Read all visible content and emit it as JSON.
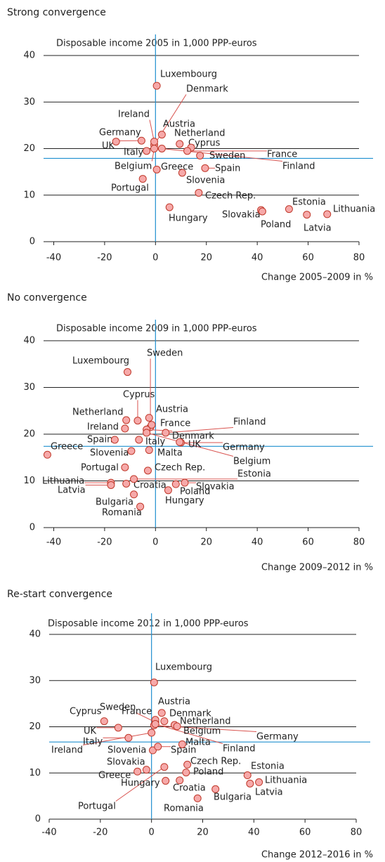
{
  "chart_data": [
    {
      "type": "scatter",
      "title": "Strong convergence",
      "ylabel": "Disposable income 2005 in 1,000 PPP-euros",
      "xlabel": "Change 2005–2009 in %",
      "xlim": [
        -44,
        80
      ],
      "ylim": [
        0,
        40
      ],
      "xticks": [
        -40,
        -20,
        0,
        20,
        40,
        60,
        80
      ],
      "yticks": [
        0,
        10,
        20,
        30,
        40
      ],
      "grid": true,
      "hline": 17.9,
      "vline": 0,
      "color": "#f6a9a9",
      "edgecolor": "#c0392b",
      "refcolor": "#1f8fcf",
      "labels": [
        "Luxembourg",
        "Denmark",
        "Ireland",
        "Austria",
        "Germany",
        "Netherland",
        "Cyprus",
        "UK",
        "Italy",
        "France",
        "Sweden",
        "Belgium",
        "Greece",
        "Spain",
        "Finland",
        "Slovenia",
        "Portugal",
        "Czech Rep.",
        "Slovakia",
        "Estonia",
        "Lithuania",
        "Hungary",
        "Poland",
        "Latvia"
      ],
      "x": [
        0.5,
        -0.5,
        -0.5,
        2.5,
        -15.5,
        9.5,
        14,
        -5.5,
        -3.5,
        12.5,
        17.5,
        -0.5,
        0.5,
        19.5,
        2.5,
        10.5,
        -5,
        17,
        41.5,
        52.5,
        67.5,
        5.5,
        42,
        59.5
      ],
      "values": [
        33.5,
        20.8,
        21.5,
        23,
        21.5,
        21,
        20.2,
        21.7,
        19.5,
        19.5,
        18.5,
        20,
        15.5,
        15.8,
        20,
        14.8,
        13.5,
        10.5,
        6.8,
        7,
        5.9,
        7.4,
        6.5,
        5.8
      ]
    },
    {
      "type": "scatter",
      "title": "No convergence",
      "ylabel": "Disposable income 2009 in 1,000 PPP-euros",
      "xlabel": "Change 2009–2012 in %",
      "xlim": [
        -44,
        80
      ],
      "ylim": [
        0,
        40
      ],
      "xticks": [
        -40,
        -20,
        0,
        20,
        40,
        60,
        80
      ],
      "yticks": [
        0,
        10,
        20,
        30,
        40
      ],
      "grid": true,
      "hline": 17.4,
      "vline": 0,
      "color": "#f6a9a9",
      "edgecolor": "#c0392b",
      "refcolor": "#1f8fcf",
      "labels": [
        "Sweden",
        "Luxembourg",
        "Cyprus",
        "Austria",
        "Netherland",
        "France",
        "Finland",
        "Ireland",
        "Denmark",
        "Spain",
        "Italy",
        "Germany",
        "UK",
        "Greece",
        "Belgium",
        "Slovenia",
        "Malta",
        "Portugal",
        "Czech Rep.",
        "Estonia",
        "Lithuania",
        "Croatia",
        "Slovakia",
        "Latvia",
        "Poland",
        "Hungary",
        "Bulgaria",
        "Romania"
      ],
      "x": [
        -2,
        -11,
        -7,
        -2.5,
        -11.5,
        -1.5,
        4,
        -12,
        -3.5,
        -16,
        -6.5,
        10,
        9.5,
        -42.5,
        -3.5,
        -9.5,
        -2.5,
        -12,
        -3,
        -8.5,
        -17.5,
        -11.5,
        11.5,
        -17.5,
        8,
        5,
        -8.5,
        -6
      ],
      "values": [
        21.5,
        33.3,
        22.9,
        23.5,
        23,
        22,
        20.3,
        21.2,
        21,
        18.8,
        18.8,
        18.2,
        18.3,
        15.6,
        20.3,
        16.4,
        16.6,
        12.9,
        12.2,
        10.4,
        9.6,
        9.4,
        9.6,
        9.1,
        9.3,
        8,
        7.1,
        4.5
      ]
    },
    {
      "type": "scatter",
      "title": "Re-start convergence",
      "ylabel": "Disposable income 2012 in 1,000 PPP-euros",
      "xlabel": "Change 2012–2016 in %",
      "xlim": [
        -40,
        80
      ],
      "ylim": [
        0,
        40
      ],
      "xticks": [
        -40,
        -20,
        0,
        20,
        40,
        60,
        80
      ],
      "yticks": [
        0,
        10,
        20,
        30,
        40
      ],
      "grid": true,
      "hline": 16.7,
      "vline": 0,
      "color": "#f6a9a9",
      "edgecolor": "#c0392b",
      "refcolor": "#1f8fcf",
      "labels": [
        "Luxembourg",
        "Sweden",
        "Austria",
        "France",
        "Denmark",
        "Cyprus",
        "Netherland",
        "UK",
        "Belgium",
        "Germany",
        "Italy",
        "Malta",
        "Ireland",
        "Finland",
        "Slovenia",
        "Spain",
        "Czech Rep.",
        "Estonia",
        "Slovakia",
        "Poland",
        "Greece",
        "Lithuania",
        "Hungary",
        "Croatia",
        "Latvia",
        "Bulgaria",
        "Portugal",
        "Romania"
      ],
      "x": [
        1,
        1.5,
        4,
        1.5,
        5,
        -18.5,
        9,
        -13,
        10,
        1,
        -9,
        12,
        0,
        1.5,
        0.5,
        2.5,
        14,
        37.5,
        -2,
        13.5,
        -5.5,
        42,
        5.5,
        11,
        38.5,
        25,
        5,
        18
      ],
      "values": [
        29.6,
        21,
        23,
        21.5,
        21.2,
        21.2,
        20.4,
        19.8,
        20.1,
        20.3,
        17.6,
        16.2,
        18.7,
        20.6,
        14.9,
        15.7,
        11.8,
        9.5,
        10.7,
        10.1,
        10.3,
        8,
        8.3,
        8.4,
        7.7,
        6.5,
        11.3,
        4.5
      ]
    }
  ]
}
